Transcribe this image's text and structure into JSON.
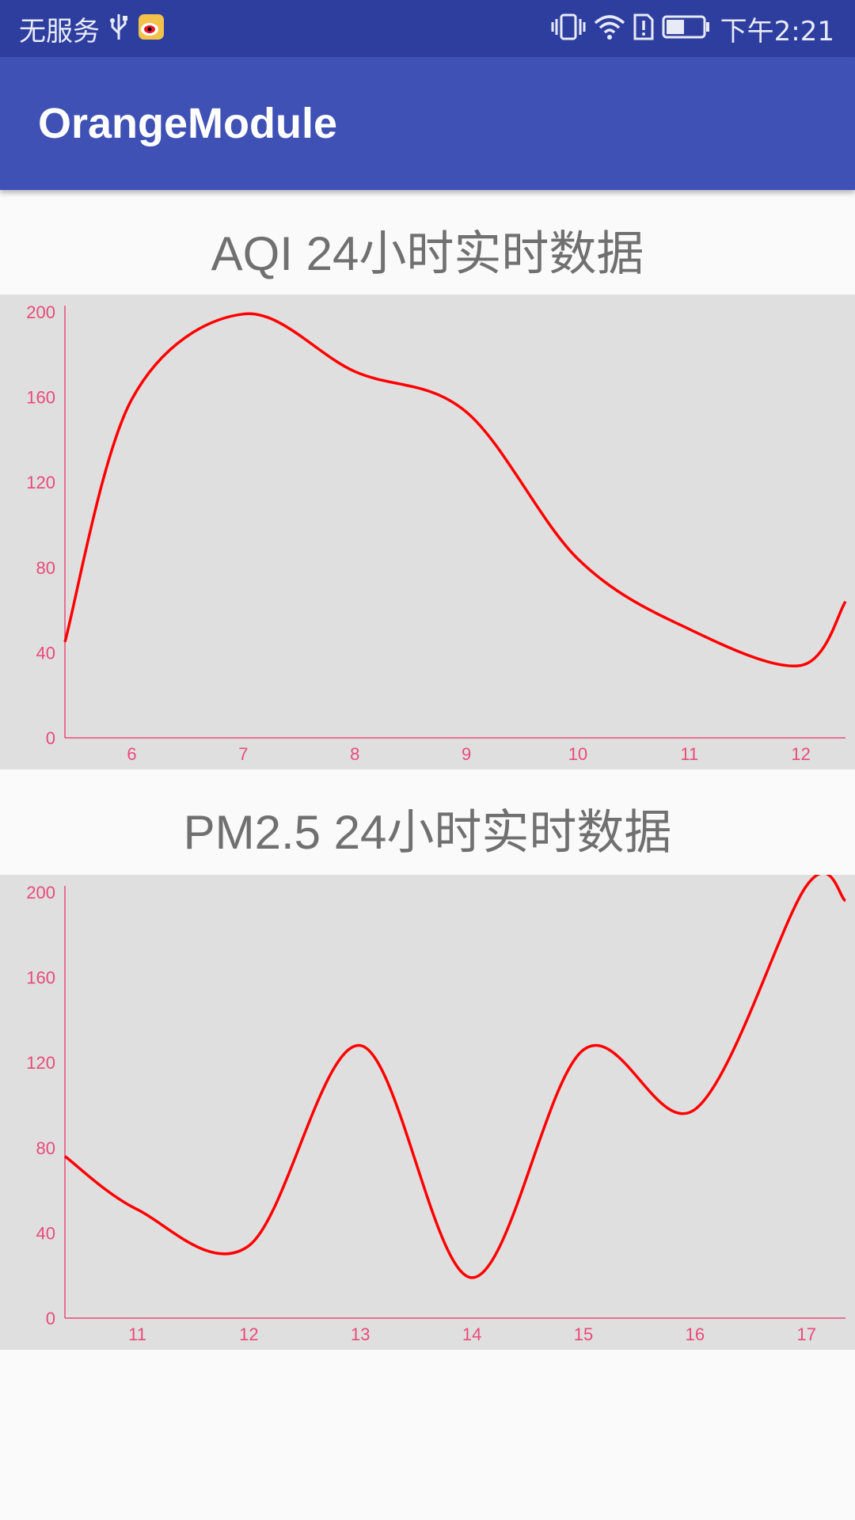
{
  "status_bar": {
    "carrier": "无服务",
    "time": "下午2:21",
    "icons": [
      "usb-icon",
      "weibo-icon",
      "vibrate-icon",
      "wifi-icon",
      "sim-alert-icon",
      "battery-icon"
    ]
  },
  "app_bar": {
    "title": "OrangeModule",
    "background": "#3f51b5"
  },
  "charts_meta": {
    "line_color": "#ff0000",
    "axis_color": "#e84b7a",
    "panel_color": "#dfdfdf"
  },
  "chart_data": [
    {
      "type": "line",
      "title": "AQI 24小时实时数据",
      "x": [
        5.4,
        6,
        7,
        8,
        9,
        10,
        11,
        12,
        12.4
      ],
      "values": [
        45,
        159,
        199,
        172,
        153,
        84,
        51,
        34,
        64
      ],
      "xticks": [
        "6",
        "7",
        "8",
        "9",
        "10",
        "11",
        "12"
      ],
      "yticks": [
        "0",
        "40",
        "80",
        "120",
        "160",
        "200"
      ],
      "xlim": [
        5.4,
        12.4
      ],
      "ylim": [
        0,
        200
      ],
      "grid": false
    },
    {
      "type": "line",
      "title": "PM2.5 24小时实时数据",
      "x": [
        10.35,
        11,
        12,
        13,
        14,
        15,
        16,
        17,
        17.35
      ],
      "values": [
        76,
        51,
        34,
        128,
        19,
        126,
        98,
        203,
        196
      ],
      "xticks": [
        "11",
        "12",
        "13",
        "14",
        "15",
        "16",
        "17"
      ],
      "yticks": [
        "0",
        "40",
        "80",
        "120",
        "160",
        "200"
      ],
      "xlim": [
        10.35,
        17.35
      ],
      "ylim": [
        0,
        200
      ],
      "grid": false
    }
  ]
}
